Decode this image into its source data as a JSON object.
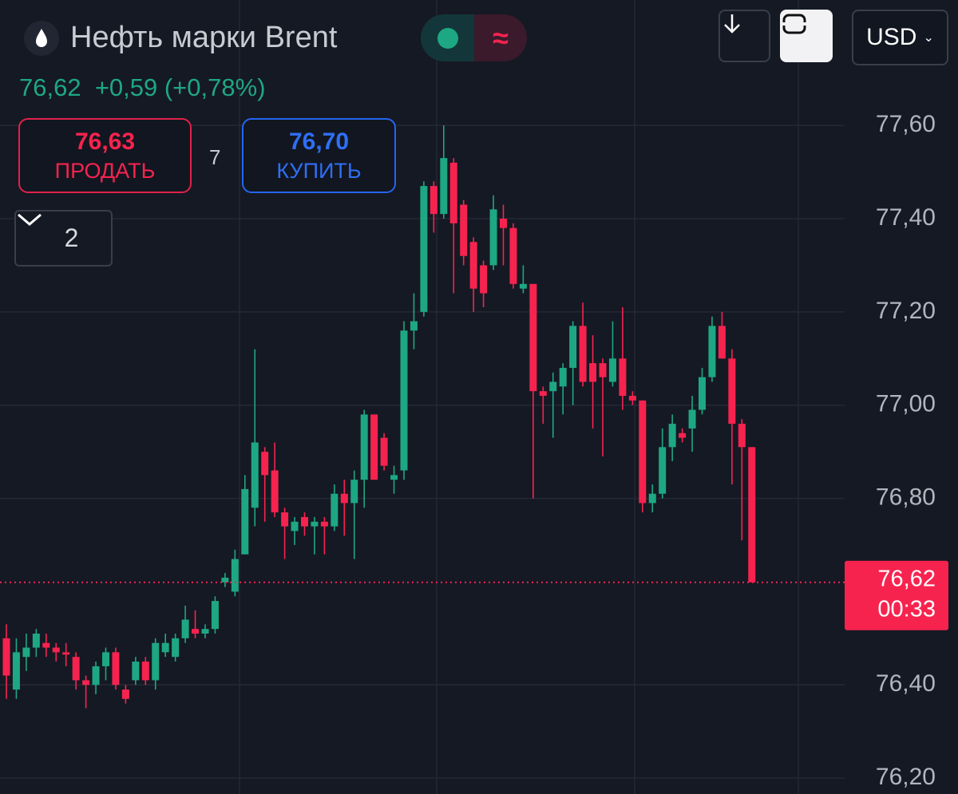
{
  "header": {
    "title": "Нефть марки Brent",
    "price": "76,62",
    "change": "+0,59 (+0,78%)",
    "currency": "USD"
  },
  "trade": {
    "sell_price": "76,63",
    "sell_label": "ПРОДАТЬ",
    "spread": "7",
    "buy_price": "76,70",
    "buy_label": "КУПИТЬ",
    "collapsed_count": "2"
  },
  "chart_data": {
    "type": "candlestick",
    "up_color": "#1ea783",
    "down_color": "#f7234f",
    "ylim": [
      76.166,
      77.869
    ],
    "yticks": [
      {
        "value": 77.6,
        "label": "77,60"
      },
      {
        "value": 77.4,
        "label": "77,40"
      },
      {
        "value": 77.2,
        "label": "77,20"
      },
      {
        "value": 77.0,
        "label": "77,00"
      },
      {
        "value": 76.8,
        "label": "76,80"
      },
      {
        "value": 76.4,
        "label": "76,40"
      },
      {
        "value": 76.2,
        "label": "76,20"
      }
    ],
    "grid": true,
    "last_price": {
      "value": 76.62,
      "label": "76,62"
    },
    "timer": "00:33",
    "open": [
      76.5,
      76.39,
      76.46,
      76.48,
      76.49,
      76.48,
      76.47,
      76.46,
      76.41,
      76.4,
      76.44,
      76.47,
      76.39,
      76.41,
      76.45,
      76.41,
      76.47,
      76.46,
      76.5,
      76.52,
      76.51,
      76.52,
      76.62,
      76.6,
      76.68,
      76.78,
      76.9,
      76.86,
      76.77,
      76.73,
      76.76,
      76.74,
      76.75,
      76.74,
      76.81,
      76.79,
      76.84,
      76.98,
      76.93,
      76.84,
      76.86,
      77.16,
      77.2,
      77.47,
      77.41,
      77.52,
      77.43,
      77.35,
      77.3,
      77.3,
      77.4,
      77.38,
      77.25,
      77.26,
      77.03,
      77.03,
      77.04,
      77.08,
      77.17,
      77.09,
      77.09,
      77.05,
      77.1,
      77.02,
      77.01,
      76.79,
      76.81,
      76.91,
      76.94,
      76.95,
      76.99,
      77.06,
      77.17,
      77.1,
      76.96,
      76.91
    ],
    "high": [
      76.53,
      76.5,
      76.51,
      76.52,
      76.51,
      76.49,
      76.49,
      76.47,
      76.42,
      76.45,
      76.48,
      76.48,
      76.4,
      76.46,
      76.46,
      76.5,
      76.51,
      76.51,
      76.57,
      76.56,
      76.53,
      76.59,
      76.64,
      76.69,
      76.85,
      77.12,
      76.91,
      76.92,
      76.78,
      76.76,
      76.77,
      76.76,
      76.76,
      76.83,
      76.84,
      76.86,
      76.99,
      76.98,
      76.94,
      76.87,
      77.18,
      77.24,
      77.48,
      77.48,
      77.6,
      77.53,
      77.44,
      77.36,
      77.31,
      77.45,
      77.43,
      77.39,
      77.3,
      77.26,
      77.04,
      77.07,
      77.09,
      77.18,
      77.22,
      77.15,
      77.1,
      77.18,
      77.21,
      77.03,
      77.01,
      76.83,
      76.95,
      76.98,
      76.95,
      77.02,
      77.08,
      77.19,
      77.2,
      77.12,
      76.97,
      76.91
    ],
    "low": [
      76.37,
      76.37,
      76.43,
      76.46,
      76.46,
      76.45,
      76.44,
      76.39,
      76.35,
      76.38,
      76.41,
      76.39,
      76.36,
      76.4,
      76.4,
      76.39,
      76.46,
      76.45,
      76.49,
      76.5,
      76.5,
      76.51,
      76.61,
      76.59,
      76.68,
      76.74,
      76.75,
      76.76,
      76.67,
      76.7,
      76.72,
      76.68,
      76.68,
      76.73,
      76.72,
      76.67,
      76.78,
      76.84,
      76.86,
      76.81,
      76.84,
      77.12,
      77.19,
      77.37,
      77.4,
      77.24,
      77.3,
      77.2,
      77.21,
      77.29,
      77.3,
      77.25,
      77.24,
      76.8,
      76.96,
      76.93,
      76.98,
      77.0,
      77.04,
      76.95,
      76.89,
      77.04,
      76.99,
      77.0,
      76.77,
      76.77,
      76.8,
      76.88,
      76.92,
      76.9,
      76.98,
      77.05,
      77.1,
      76.83,
      76.71,
      76.62
    ],
    "close": [
      76.42,
      76.47,
      76.48,
      76.51,
      76.48,
      76.47,
      76.465,
      76.41,
      76.4,
      76.44,
      76.47,
      76.4,
      76.37,
      76.45,
      76.41,
      76.49,
      76.49,
      76.5,
      76.54,
      76.51,
      76.52,
      76.58,
      76.63,
      76.67,
      76.82,
      76.92,
      76.85,
      76.77,
      76.74,
      76.75,
      76.74,
      76.75,
      76.74,
      76.81,
      76.79,
      76.84,
      76.98,
      76.84,
      76.87,
      76.85,
      77.16,
      77.18,
      77.47,
      77.41,
      77.53,
      77.39,
      77.32,
      77.25,
      77.24,
      77.42,
      77.38,
      77.26,
      77.26,
      77.03,
      77.02,
      77.05,
      77.08,
      77.17,
      77.05,
      77.05,
      77.06,
      77.1,
      77.02,
      77.01,
      76.79,
      76.81,
      76.91,
      76.96,
      76.93,
      76.99,
      77.06,
      77.17,
      77.1,
      76.96,
      76.91,
      76.62
    ]
  }
}
